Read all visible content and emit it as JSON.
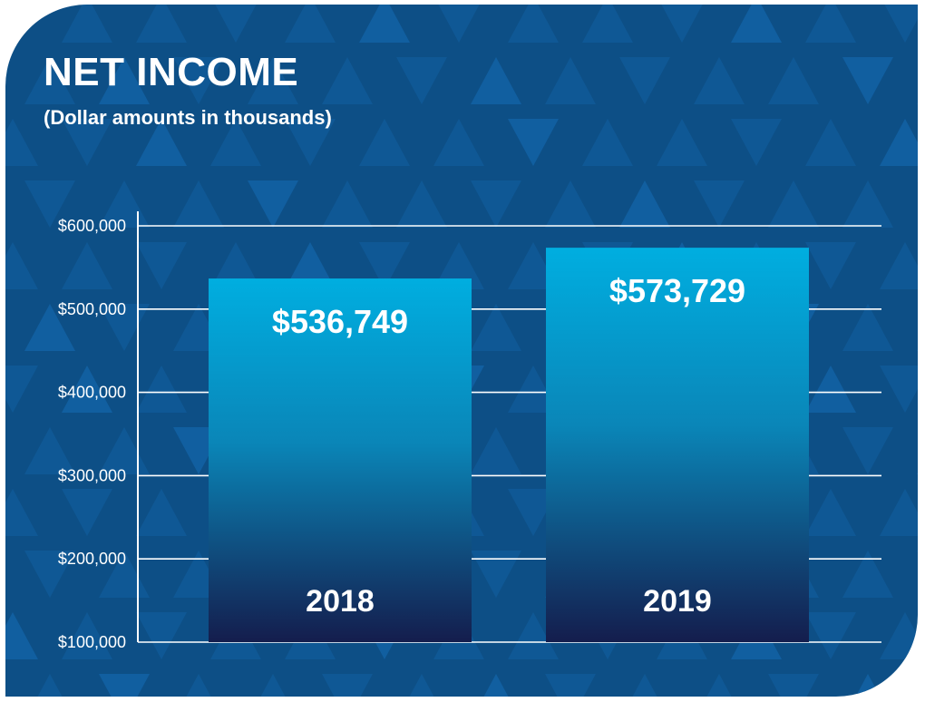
{
  "title": "NET INCOME",
  "subtitle": "(Dollar amounts in thousands)",
  "colors": {
    "background": "#0d4f86",
    "pattern": "#1260a3",
    "bar_top": "#00aee0",
    "bar_bottom": "#141d4d",
    "grid": "#ffffff"
  },
  "chart_data": {
    "type": "bar",
    "title": "NET INCOME",
    "subtitle": "(Dollar amounts in thousands)",
    "categories": [
      "2018",
      "2019"
    ],
    "values": [
      536749,
      573729
    ],
    "value_labels": [
      "$536,749",
      "$573,729"
    ],
    "y_ticks": [
      100000,
      200000,
      300000,
      400000,
      500000,
      600000
    ],
    "y_tick_labels": [
      "$100,000",
      "$200,000",
      "$300,000",
      "$400,000",
      "$500,000",
      "$600,000"
    ],
    "ylim": [
      100000,
      600000
    ],
    "grid": true,
    "legend": "none"
  }
}
